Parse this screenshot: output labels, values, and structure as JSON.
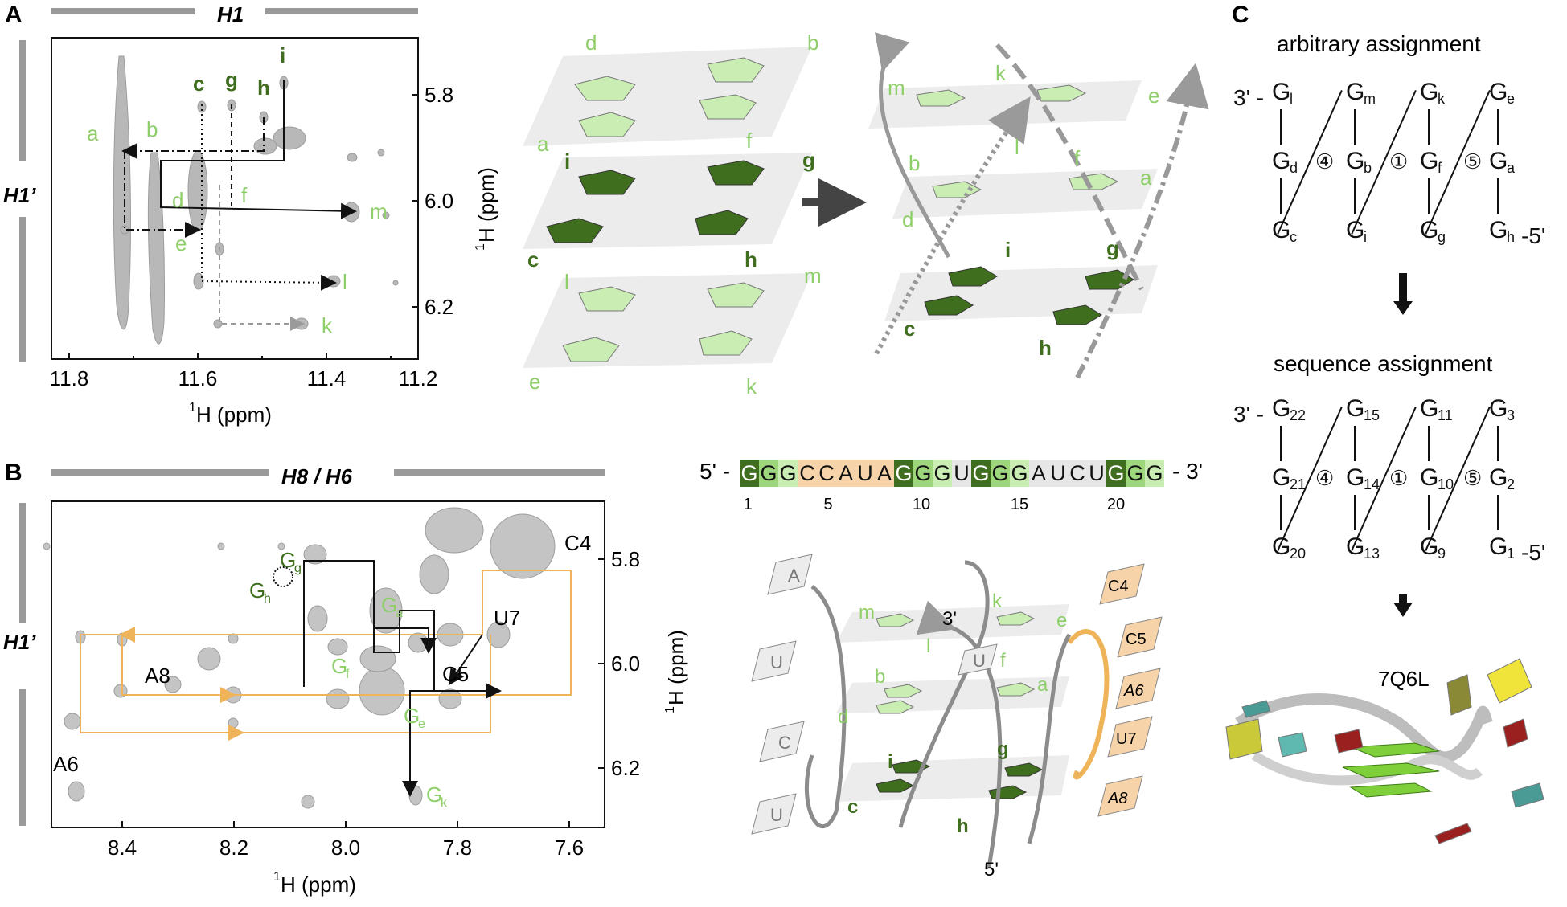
{
  "colors": {
    "dark_green": "#3f6e1e",
    "light_green": "#9ed67c",
    "pale_green": "#c9edb3",
    "orange": "#efb45a",
    "orange_fill": "#f6d3a8",
    "gray": "#9a9a9a"
  },
  "panelA": {
    "label": "A",
    "top_bar": "H1",
    "side_bar": "H1’",
    "x_ticks": [
      "11.8",
      "11.6",
      "11.4",
      "11.2"
    ],
    "y_ticks": [
      "5.8",
      "6.0",
      "6.2"
    ],
    "x_axis_label_sup": "1",
    "x_axis_label": "H (ppm)",
    "y_axis_label_sup": "1",
    "y_axis_label": "H (ppm)",
    "peak_labels": [
      "a",
      "b",
      "c",
      "d",
      "e",
      "f",
      "g",
      "h",
      "i",
      "k",
      "l",
      "m"
    ],
    "stack_letters": [
      "d",
      "b",
      "a",
      "f",
      "i",
      "g",
      "c",
      "h",
      "l",
      "m",
      "e",
      "k"
    ],
    "fold_letters": [
      "m",
      "k",
      "e",
      "b",
      "f",
      "a",
      "d",
      "l",
      "i",
      "g",
      "c",
      "h"
    ]
  },
  "panelB": {
    "label": "B",
    "top_bar": "H8 / H6",
    "side_bar": "H1’",
    "x_ticks": [
      "8.4",
      "8.2",
      "8.0",
      "7.8",
      "7.6"
    ],
    "y_ticks": [
      "5.8",
      "6.0",
      "6.2"
    ],
    "x_axis_label_sup": "1",
    "x_axis_label": "H (ppm)",
    "y_axis_label_sup": "1",
    "y_axis_label": "H (ppm)",
    "peaks": [
      "C4",
      "U7",
      "C5",
      "A8",
      "A6"
    ],
    "g_base": "G",
    "g_peaks": [
      "g",
      "h",
      "a",
      "f",
      "e",
      "k"
    ]
  },
  "sequence": {
    "prefix": "5' -",
    "suffix": "- 3'",
    "letters": [
      "G",
      "G",
      "G",
      "C",
      "C",
      "A",
      "U",
      "A",
      "G",
      "G",
      "G",
      "U",
      "G",
      "G",
      "G",
      "A",
      "U",
      "C",
      "U",
      "G",
      "G",
      "G"
    ],
    "numbers": [
      "1",
      "5",
      "10",
      "15",
      "20"
    ]
  },
  "topology": {
    "loop_left": [
      "A",
      "U",
      "C",
      "U"
    ],
    "loop_right": [
      "C4",
      "C5",
      "A6",
      "U7",
      "A8"
    ],
    "middle_loop": "U",
    "end3": "3'",
    "end5": "5'",
    "letters": [
      "m",
      "k",
      "e",
      "b",
      "f",
      "a",
      "d",
      "l",
      "i",
      "g",
      "c",
      "h"
    ]
  },
  "panelC": {
    "label": "C",
    "title1": "arbitrary assignment",
    "title2": "sequence assignment",
    "pdb": "7Q6L",
    "prime3": "3' -",
    "prime5": "-5'",
    "arbitrary": {
      "top": [
        "l",
        "m",
        "k",
        "e"
      ],
      "mid": [
        "d",
        "b",
        "f",
        "a"
      ],
      "bot": [
        "c",
        "i",
        "g",
        "h"
      ]
    },
    "sequence": {
      "top": [
        "22",
        "15",
        "11",
        "3"
      ],
      "mid": [
        "21",
        "14",
        "10",
        "2"
      ],
      "bot": [
        "20",
        "13",
        "9",
        "1"
      ]
    },
    "loops": [
      "④",
      "①",
      "⑤"
    ]
  }
}
